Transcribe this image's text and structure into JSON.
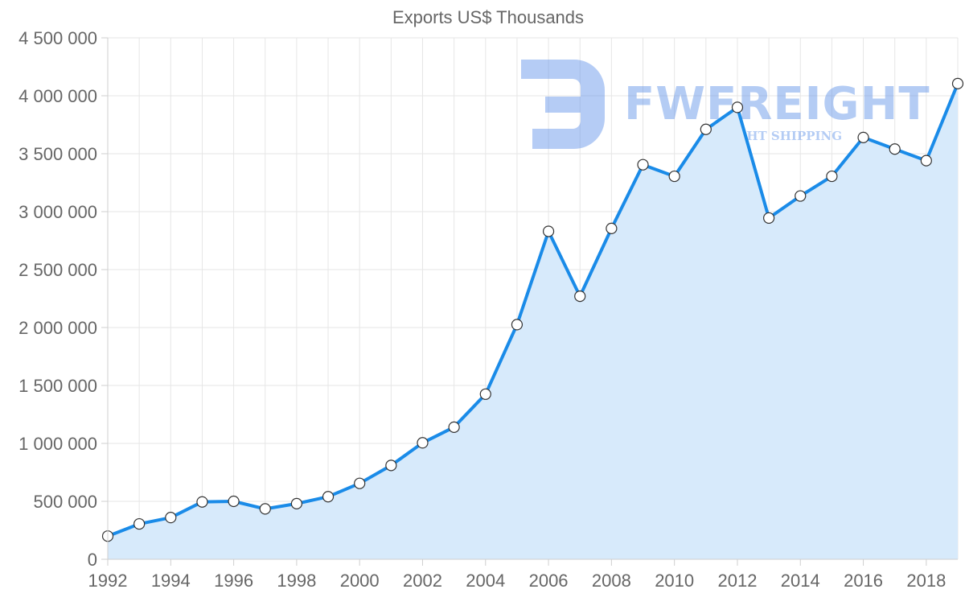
{
  "chart_data": {
    "type": "area",
    "title": "Exports US$ Thousands",
    "xlabel": "",
    "ylabel": "",
    "x": [
      1992,
      1993,
      1994,
      1995,
      1996,
      1997,
      1998,
      1999,
      2000,
      2001,
      2002,
      2003,
      2004,
      2005,
      2006,
      2007,
      2008,
      2009,
      2010,
      2011,
      2012,
      2013,
      2014,
      2015,
      2016,
      2017,
      2018,
      2019
    ],
    "series": [
      {
        "name": "Exports",
        "values": [
          200000,
          305000,
          360000,
          495000,
          500000,
          435000,
          480000,
          540000,
          655000,
          810000,
          1005000,
          1140000,
          1425000,
          2025000,
          2830000,
          2270000,
          2855000,
          3405000,
          3305000,
          3710000,
          3900000,
          2945000,
          3135000,
          3305000,
          3640000,
          3540000,
          3440000,
          4105000
        ]
      }
    ],
    "xlim": [
      1992,
      2019
    ],
    "ylim": [
      0,
      4500000
    ],
    "x_ticks": [
      "1992",
      "1994",
      "1996",
      "1998",
      "2000",
      "2002",
      "2004",
      "2006",
      "2008",
      "2010",
      "2012",
      "2014",
      "2016",
      "2018"
    ],
    "y_ticks": [
      "0",
      "500 000",
      "1 000 000",
      "1 500 000",
      "2 000 000",
      "2 500 000",
      "3 000 000",
      "3 500 000",
      "4 000 000",
      "4 500 000"
    ],
    "grid": true,
    "colors": {
      "line": "#1a8be8",
      "fill": "#d7eafb",
      "marker_fill": "#ffffff",
      "marker_stroke": "#333333"
    }
  },
  "watermark": {
    "brand": "FWFREIGHT",
    "tagline": "FREIGHT SHIPPING",
    "color": "#5b8fe8"
  }
}
